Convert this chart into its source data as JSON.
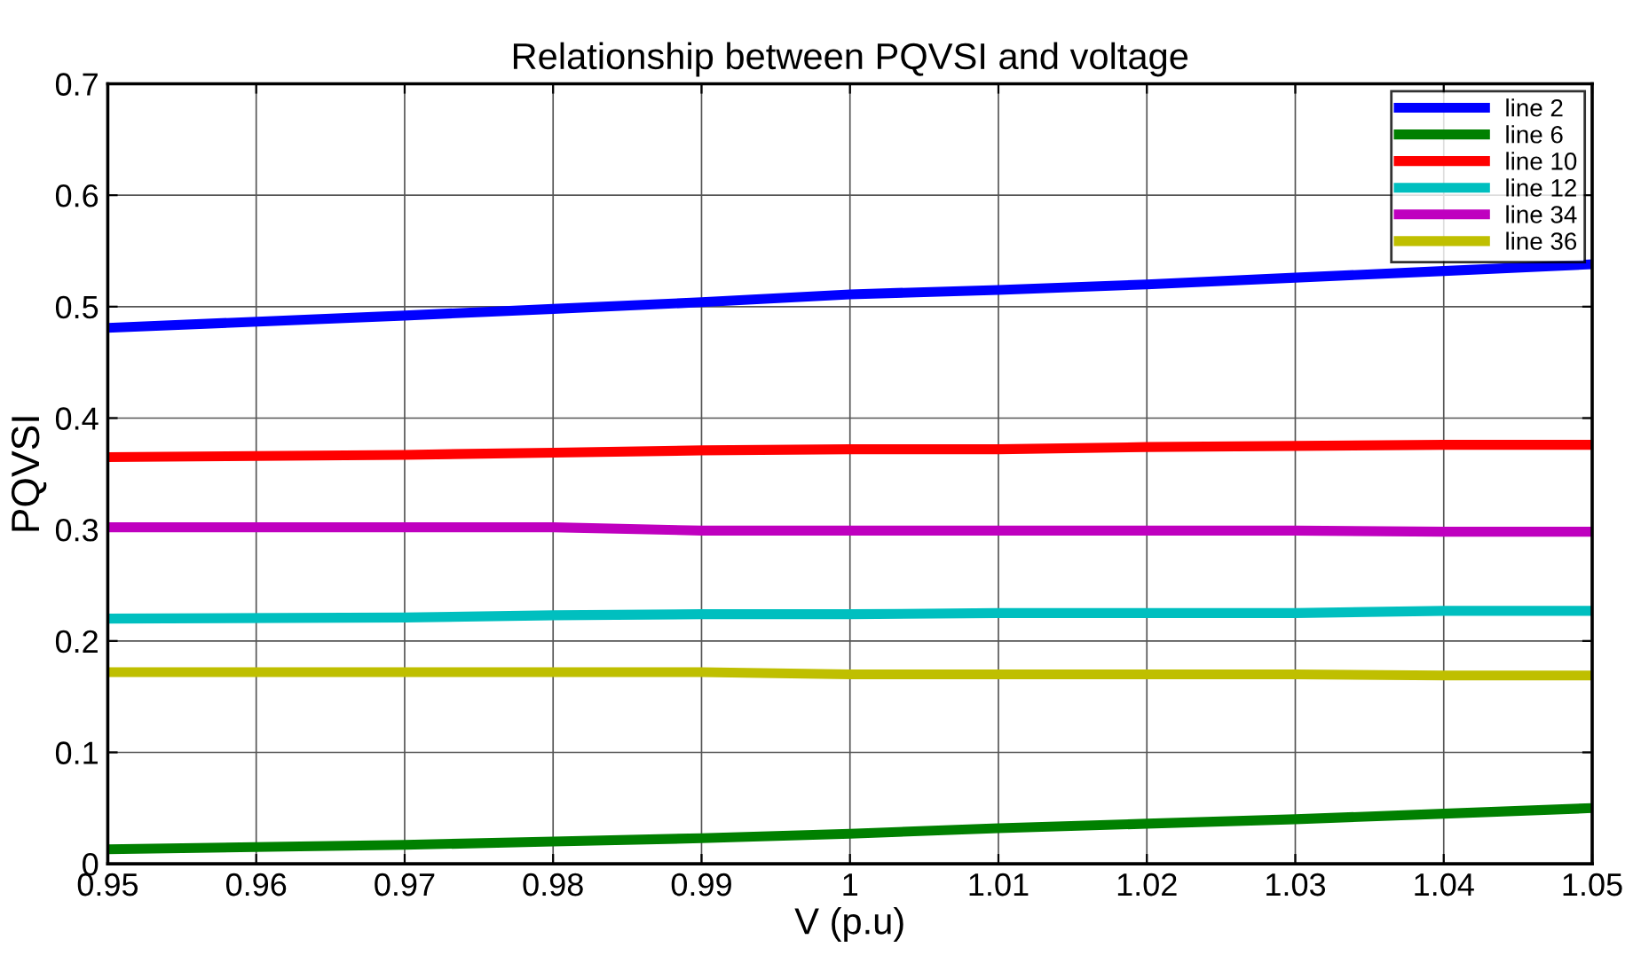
{
  "chart_data": {
    "type": "line",
    "title": "Relationship between PQVSI and voltage",
    "xlabel": "V (p.u)",
    "ylabel": "PQVSI",
    "x": [
      0.95,
      0.97,
      0.98,
      0.99,
      1.0,
      1.01,
      1.02,
      1.03,
      1.04,
      1.05
    ],
    "series": [
      {
        "name": "line 2",
        "color": "#0000ff",
        "values": [
          0.481,
          0.492,
          0.498,
          0.504,
          0.511,
          0.515,
          0.52,
          0.526,
          0.532,
          0.538
        ]
      },
      {
        "name": "line 6",
        "color": "#008000",
        "values": [
          0.013,
          0.017,
          0.02,
          0.023,
          0.027,
          0.032,
          0.036,
          0.04,
          0.045,
          0.05
        ]
      },
      {
        "name": "line 10",
        "color": "#ff0000",
        "values": [
          0.365,
          0.367,
          0.369,
          0.371,
          0.372,
          0.372,
          0.374,
          0.375,
          0.376,
          0.376
        ]
      },
      {
        "name": "line 12",
        "color": "#00bfbf",
        "values": [
          0.22,
          0.221,
          0.223,
          0.224,
          0.224,
          0.225,
          0.225,
          0.225,
          0.227,
          0.227
        ]
      },
      {
        "name": "line 34",
        "color": "#bf00bf",
        "values": [
          0.302,
          0.302,
          0.302,
          0.299,
          0.299,
          0.299,
          0.299,
          0.299,
          0.298,
          0.298
        ]
      },
      {
        "name": "line 36",
        "color": "#bfbf00",
        "values": [
          0.172,
          0.172,
          0.172,
          0.172,
          0.17,
          0.17,
          0.17,
          0.17,
          0.169,
          0.169
        ]
      }
    ],
    "xlim": [
      0.95,
      1.05
    ],
    "xticks": [
      0.95,
      0.96,
      0.97,
      0.98,
      0.99,
      1,
      1.01,
      1.02,
      1.03,
      1.04,
      1.05
    ],
    "ylim": [
      0,
      0.7
    ],
    "yticks": [
      0,
      0.1,
      0.2,
      0.3,
      0.4,
      0.5,
      0.6,
      0.7
    ],
    "grid": true,
    "legend": "top right",
    "marker": "none",
    "line_style": "solid"
  }
}
